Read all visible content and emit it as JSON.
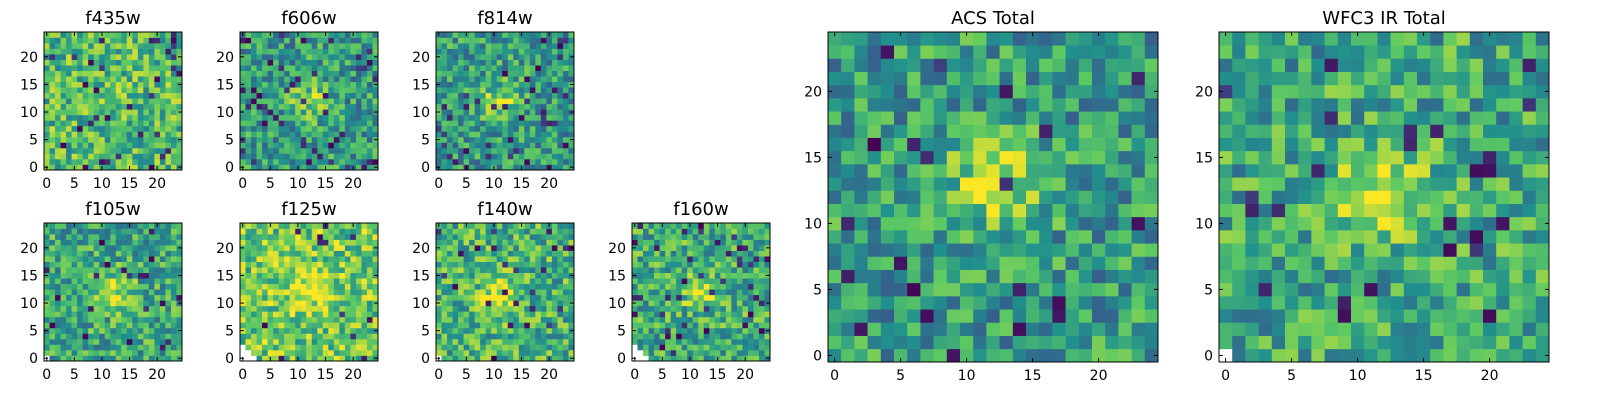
{
  "figure": {
    "layout": "two rows of small filter heatmaps (left) plus two large total heatmaps (right)"
  },
  "colormap": {
    "name": "viridis",
    "stops": [
      "#440154",
      "#3b528b",
      "#21908d",
      "#5dc963",
      "#fde725"
    ],
    "nan_color": "#ffffff"
  },
  "chart_data": [
    {
      "type": "heatmap",
      "title": "f435w",
      "grid": [
        25,
        25
      ],
      "xlim": [
        0,
        25
      ],
      "ylim": [
        0,
        25
      ],
      "xticks": [
        0,
        5,
        10,
        15,
        20
      ],
      "yticks": [
        0,
        5,
        10,
        15,
        20
      ],
      "xticklabels": [
        "0",
        "5",
        "10",
        "15",
        "20"
      ],
      "yticklabels": [
        "0",
        "5",
        "10",
        "15",
        "20"
      ],
      "values": "25x25 grid of near-uniform noise (mostly green-yellow) with scattered dark pixels; no strong central source",
      "source": {
        "x": 12,
        "y": 12,
        "strength": 0.05
      },
      "dark_fraction": 0.05,
      "level": 0.68,
      "nan_corner": 0
    },
    {
      "type": "heatmap",
      "title": "f606w",
      "grid": [
        25,
        25
      ],
      "xlim": [
        0,
        25
      ],
      "ylim": [
        0,
        25
      ],
      "xticks": [
        0,
        5,
        10,
        15,
        20
      ],
      "yticks": [
        0,
        5,
        10,
        15,
        20
      ],
      "xticklabels": [
        "0",
        "5",
        "10",
        "15",
        "20"
      ],
      "yticklabels": [
        "0",
        "5",
        "10",
        "15",
        "20"
      ],
      "values": "25x25 noisy grid with a weak bright source near (12, 12)",
      "source": {
        "x": 12,
        "y": 12,
        "strength": 0.25
      },
      "dark_fraction": 0.08,
      "level": 0.55,
      "nan_corner": 0
    },
    {
      "type": "heatmap",
      "title": "f814w",
      "grid": [
        25,
        25
      ],
      "xlim": [
        0,
        25
      ],
      "ylim": [
        0,
        25
      ],
      "xticks": [
        0,
        5,
        10,
        15,
        20
      ],
      "yticks": [
        0,
        5,
        10,
        15,
        20
      ],
      "xticklabels": [
        "0",
        "5",
        "10",
        "15",
        "20"
      ],
      "yticklabels": [
        "0",
        "5",
        "10",
        "15",
        "20"
      ],
      "values": "25x25 noisy grid with a bright source near (11, 12)",
      "source": {
        "x": 11,
        "y": 12,
        "strength": 0.3
      },
      "dark_fraction": 0.05,
      "level": 0.55,
      "nan_corner": 0
    },
    {
      "type": "heatmap",
      "title": "f105w",
      "grid": [
        25,
        25
      ],
      "xlim": [
        0,
        25
      ],
      "ylim": [
        0,
        25
      ],
      "xticks": [
        0,
        5,
        10,
        15,
        20
      ],
      "yticks": [
        0,
        5,
        10,
        15,
        20
      ],
      "xticklabels": [
        "0",
        "5",
        "10",
        "15",
        "20"
      ],
      "yticklabels": [
        "0",
        "5",
        "10",
        "15",
        "20"
      ],
      "values": "25x25 smooth noisy grid with a bright source near (12, 12); dark pixels near bottom-left",
      "source": {
        "x": 12,
        "y": 12,
        "strength": 0.3
      },
      "dark_fraction": 0.04,
      "level": 0.6,
      "nan_corner": 1
    },
    {
      "type": "heatmap",
      "title": "f125w",
      "grid": [
        25,
        25
      ],
      "xlim": [
        0,
        25
      ],
      "ylim": [
        0,
        25
      ],
      "xticks": [
        0,
        5,
        10,
        15,
        20
      ],
      "yticks": [
        0,
        5,
        10,
        15,
        20
      ],
      "xticklabels": [
        "0",
        "5",
        "10",
        "15",
        "20"
      ],
      "yticklabels": [
        "0",
        "5",
        "10",
        "15",
        "20"
      ],
      "values": "25x25 predominantly bright grid; blank (NaN) corner at bottom-left with dark edge pixels",
      "source": {
        "x": 12,
        "y": 12,
        "strength": 0.2
      },
      "dark_fraction": 0.03,
      "level": 0.75,
      "nan_corner": 3
    },
    {
      "type": "heatmap",
      "title": "f140w",
      "grid": [
        25,
        25
      ],
      "xlim": [
        0,
        25
      ],
      "ylim": [
        0,
        25
      ],
      "xticks": [
        0,
        5,
        10,
        15,
        20
      ],
      "yticks": [
        0,
        5,
        10,
        15,
        20
      ],
      "xticklabels": [
        "0",
        "5",
        "10",
        "15",
        "20"
      ],
      "yticklabels": [
        "0",
        "5",
        "10",
        "15",
        "20"
      ],
      "values": "25x25 grid with a bright source near (11, 11); dark pixels along bottom edge",
      "source": {
        "x": 11,
        "y": 11,
        "strength": 0.3
      },
      "dark_fraction": 0.04,
      "level": 0.65,
      "nan_corner": 1
    },
    {
      "type": "heatmap",
      "title": "f160w",
      "grid": [
        25,
        25
      ],
      "xlim": [
        0,
        25
      ],
      "ylim": [
        0,
        25
      ],
      "xticks": [
        0,
        5,
        10,
        15,
        20
      ],
      "yticks": [
        0,
        5,
        10,
        15,
        20
      ],
      "xticklabels": [
        "0",
        "5",
        "10",
        "15",
        "20"
      ],
      "yticklabels": [
        "0",
        "5",
        "10",
        "15",
        "20"
      ],
      "values": "25x25 grid with bright center and blank (NaN) region at bottom-left",
      "source": {
        "x": 12,
        "y": 12,
        "strength": 0.25
      },
      "dark_fraction": 0.06,
      "level": 0.62,
      "nan_corner": 3
    },
    {
      "type": "heatmap",
      "title": "ACS Total",
      "grid": [
        25,
        25
      ],
      "xlim": [
        0,
        25
      ],
      "ylim": [
        0,
        25
      ],
      "xticks": [
        0,
        5,
        10,
        15,
        20
      ],
      "yticks": [
        0,
        5,
        10,
        15,
        20
      ],
      "xticklabels": [
        "0",
        "5",
        "10",
        "15",
        "20"
      ],
      "yticklabels": [
        "0",
        "5",
        "10",
        "15",
        "20"
      ],
      "values": "25x25 noisy grid with a bright source near (12, 13) and scattered dark pixels",
      "source": {
        "x": 12,
        "y": 13,
        "strength": 0.35
      },
      "dark_fraction": 0.05,
      "level": 0.55,
      "nan_corner": 0
    },
    {
      "type": "heatmap",
      "title": "WFC3 IR Total",
      "grid": [
        25,
        25
      ],
      "xlim": [
        0,
        25
      ],
      "ylim": [
        0,
        25
      ],
      "xticks": [
        0,
        5,
        10,
        15,
        20
      ],
      "yticks": [
        0,
        5,
        10,
        15,
        20
      ],
      "xticklabels": [
        "0",
        "5",
        "10",
        "15",
        "20"
      ],
      "yticklabels": [
        "0",
        "5",
        "10",
        "15",
        "20"
      ],
      "values": "25x25 smoother grid with a bright source near (12, 12), dark blobs lower-left, blank pixels at origin",
      "source": {
        "x": 12,
        "y": 12,
        "strength": 0.4
      },
      "dark_fraction": 0.03,
      "level": 0.6,
      "nan_corner": 1
    }
  ]
}
